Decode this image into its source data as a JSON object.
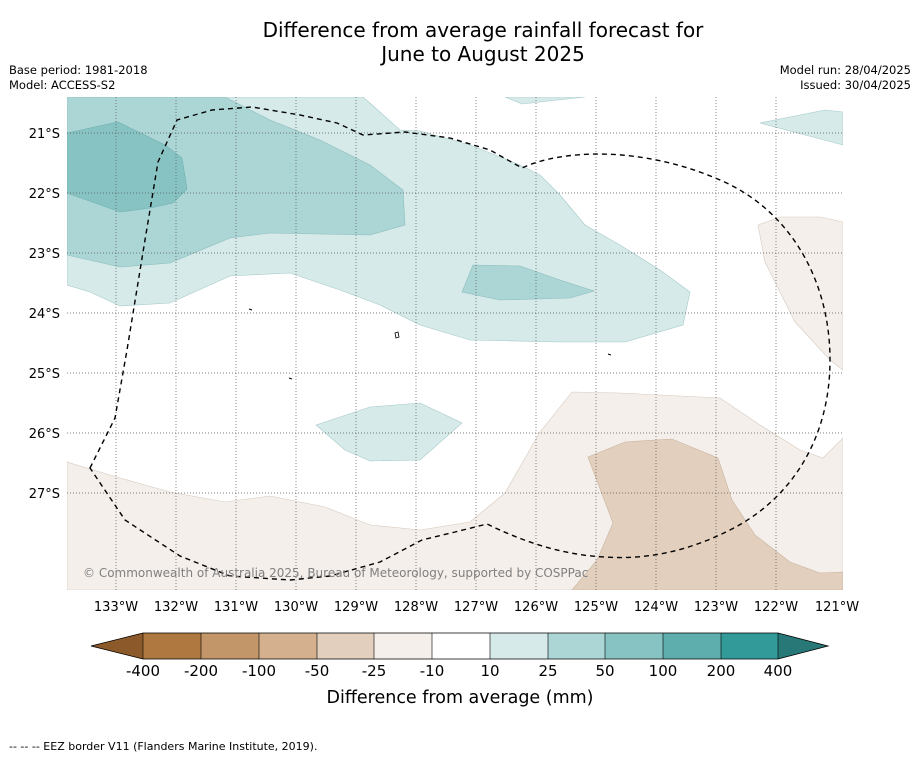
{
  "title_line1": "Difference from average rainfall forecast for",
  "title_line2": "June to August 2025",
  "base_period": "Base period: 1981-2018",
  "model": "Model: ACCESS-S2",
  "model_run": "Model run: 28/04/2025",
  "issued": "Issued: 30/04/2025",
  "copyright": "© Commonwealth of Australia 2025, Bureau of Meteorology, supported by COSPPac",
  "lon_labels": [
    "133°W",
    "132°W",
    "131°W",
    "130°W",
    "129°W",
    "128°W",
    "127°W",
    "126°W",
    "125°W",
    "124°W",
    "123°W",
    "122°W",
    "121°W"
  ],
  "lat_labels": [
    "21°S",
    "22°S",
    "23°S",
    "24°S",
    "25°S",
    "26°S",
    "27°S"
  ],
  "colorbar": {
    "title": "Difference from average (mm)",
    "tick_labels": [
      "-400",
      "-200",
      "-100",
      "-50",
      "-25",
      "-10",
      "10",
      "25",
      "50",
      "100",
      "200",
      "400"
    ],
    "colors": {
      "under": "#8c5a2a",
      "neg400": "#ae7840",
      "neg200": "#c3966a",
      "neg100": "#d4b08e",
      "neg50": "#e2cfbd",
      "neg25": "#f4efeb",
      "neutral": "#ffffff",
      "pos10": "#d5eae9",
      "pos25": "#acd6d6",
      "pos50": "#88c3c3",
      "pos100": "#5eaeae",
      "pos200": "#339a9a",
      "over": "#287878"
    }
  },
  "footnote": "--  --  -- EEZ border V11 (Flanders Marine Institute, 2019)."
}
